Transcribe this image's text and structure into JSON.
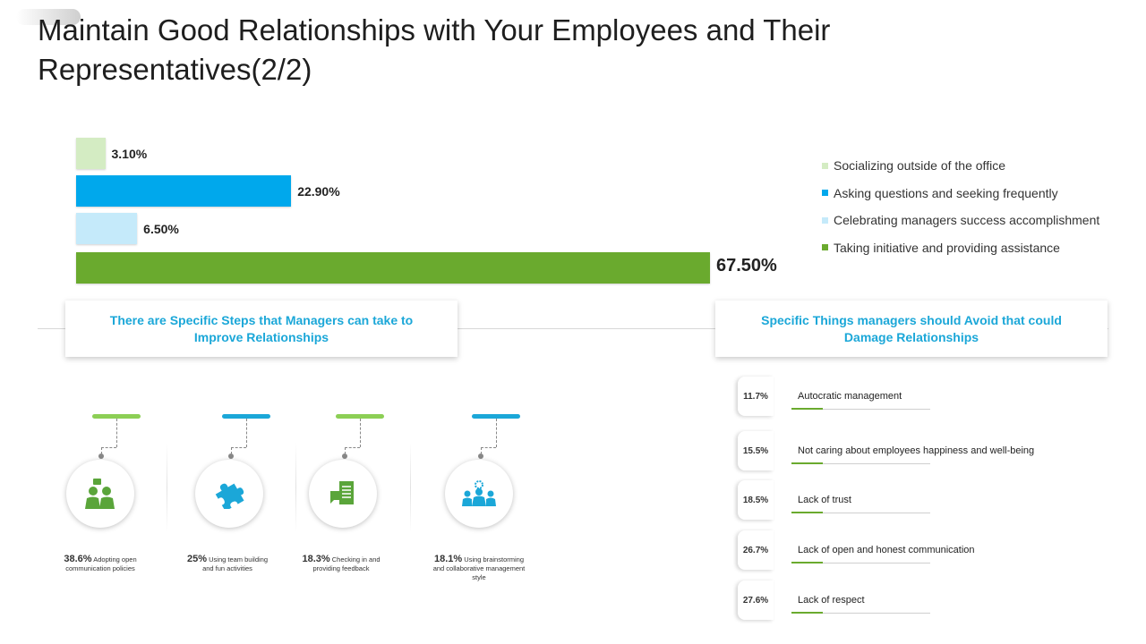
{
  "title": "Maintain Good Relationships with Your Employees and Their Representatives(2/2)",
  "chart_data": {
    "type": "bar",
    "orientation": "horizontal",
    "categories": [
      "Socializing outside of the office",
      "Asking questions and seeking frequently",
      "Celebrating managers success accomplishment",
      "Taking initiative and providing assistance"
    ],
    "values": [
      3.1,
      22.9,
      6.5,
      67.5
    ],
    "labels": [
      "3.10%",
      "22.90%",
      "6.50%",
      "67.50%"
    ],
    "colors": [
      "#d4ecc3",
      "#00a8ec",
      "#c5eafa",
      "#6aaa2e"
    ],
    "xlim": [
      0,
      67.5
    ],
    "legend_position": "right"
  },
  "callouts": {
    "left": "There are Specific Steps that Managers can take to Improve Relationships",
    "right": "Specific Things managers should Avoid that could Damage Relationships"
  },
  "steps": [
    {
      "pct": "38.6%",
      "text": "Adopting open communication policies",
      "icon": "meeting-icon",
      "color": "#8ccf55"
    },
    {
      "pct": "25%",
      "text": "Using team building and fun activities",
      "icon": "puzzle-icon",
      "color": "#1ba7d8"
    },
    {
      "pct": "18.3%",
      "text": "Checking in and providing feedback",
      "icon": "feedback-document-icon",
      "color": "#8ccf55"
    },
    {
      "pct": "18.1%",
      "text": "Using brainstorming and collaborative management style",
      "icon": "brainstorming-team-icon",
      "color": "#1ba7d8"
    }
  ],
  "avoid": [
    {
      "pct": "11.7%",
      "text": "Autocratic management"
    },
    {
      "pct": "15.5%",
      "text": "Not caring about employees happiness and well-being"
    },
    {
      "pct": "18.5%",
      "text": "Lack of trust"
    },
    {
      "pct": "26.7%",
      "text": "Lack of open and honest communication"
    },
    {
      "pct": "27.6%",
      "text": "Lack of respect"
    }
  ]
}
